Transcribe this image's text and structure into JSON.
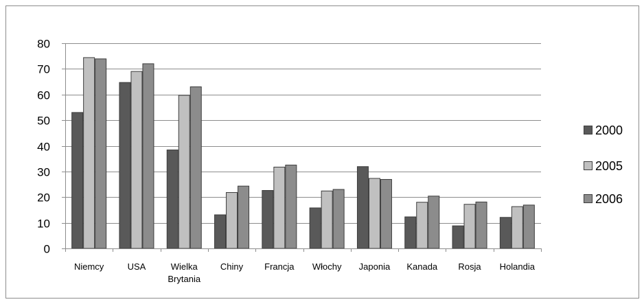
{
  "chart_data": {
    "type": "bar",
    "title": "",
    "xlabel": "",
    "ylabel": "",
    "ylim": [
      0,
      80
    ],
    "yticks": [
      0,
      10,
      20,
      30,
      40,
      50,
      60,
      70,
      80
    ],
    "grid": true,
    "legend_position": "right",
    "categories": [
      "Niemcy",
      "USA",
      "Wielka Brytania",
      "Chiny",
      "Francja",
      "Włochy",
      "Japonia",
      "Kanada",
      "Rosja",
      "Holandia"
    ],
    "category_lines": [
      [
        "Niemcy"
      ],
      [
        "USA"
      ],
      [
        "Wielka",
        "Brytania"
      ],
      [
        "Chiny"
      ],
      [
        "Francja"
      ],
      [
        "Włochy"
      ],
      [
        "Japonia"
      ],
      [
        "Kanada"
      ],
      [
        "Rosja"
      ],
      [
        "Holandia"
      ]
    ],
    "series": [
      {
        "name": "2000",
        "color": "#595959",
        "values": [
          53,
          64.7,
          38.4,
          13.1,
          22.6,
          15.8,
          31.9,
          12.3,
          8.8,
          12.1
        ]
      },
      {
        "name": "2005",
        "color": "#c0c0c0",
        "values": [
          74.4,
          69,
          59.7,
          21.8,
          31.7,
          22.4,
          27.3,
          18,
          17.2,
          16.3
        ]
      },
      {
        "name": "2006",
        "color": "#8c8c8c",
        "values": [
          73.9,
          72,
          63,
          24.3,
          32.5,
          23,
          26.9,
          20.4,
          18.1,
          16.9
        ]
      }
    ]
  }
}
